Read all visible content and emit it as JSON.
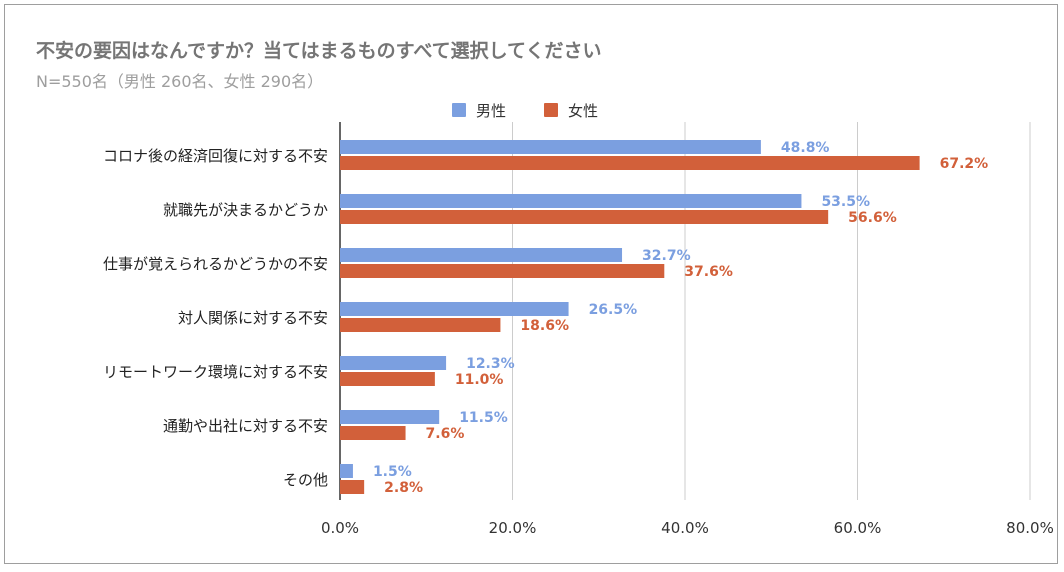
{
  "chart_data": {
    "type": "bar",
    "orientation": "horizontal",
    "title": "不安の要因はなんですか？当てはまるものすべて選択してください",
    "subtitle": "N=550名（男性 260名、女性 290名）",
    "categories": [
      "コロナ後の経済回復に対する不安",
      "就職先が決まるかどうか",
      "仕事が覚えられるかどうかの不安",
      "対人関係に対する不安",
      "リモートワーク環境に対する不安",
      "通勤や出社に対する不安",
      "その他"
    ],
    "series": [
      {
        "name": "男性",
        "color": "#7b9fe0",
        "values": [
          48.8,
          53.5,
          32.7,
          26.5,
          12.3,
          11.5,
          1.5
        ],
        "labels": [
          "48.8%",
          "53.5%",
          "32.7%",
          "26.5%",
          "12.3%",
          "11.5%",
          "1.5%"
        ]
      },
      {
        "name": "女性",
        "color": "#d2603a",
        "values": [
          67.2,
          56.6,
          37.6,
          18.6,
          11.0,
          7.6,
          2.8
        ],
        "labels": [
          "67.2%",
          "56.6%",
          "37.6%",
          "18.6%",
          "11.0%",
          "7.6%",
          "2.8%"
        ]
      }
    ],
    "xlim": [
      0,
      80
    ],
    "xticks": [
      0,
      20,
      40,
      60,
      80
    ],
    "xtick_labels": [
      "0.0%",
      "20.0%",
      "40.0%",
      "60.0%",
      "80.0%"
    ],
    "grid": true,
    "legend_position": "top"
  }
}
